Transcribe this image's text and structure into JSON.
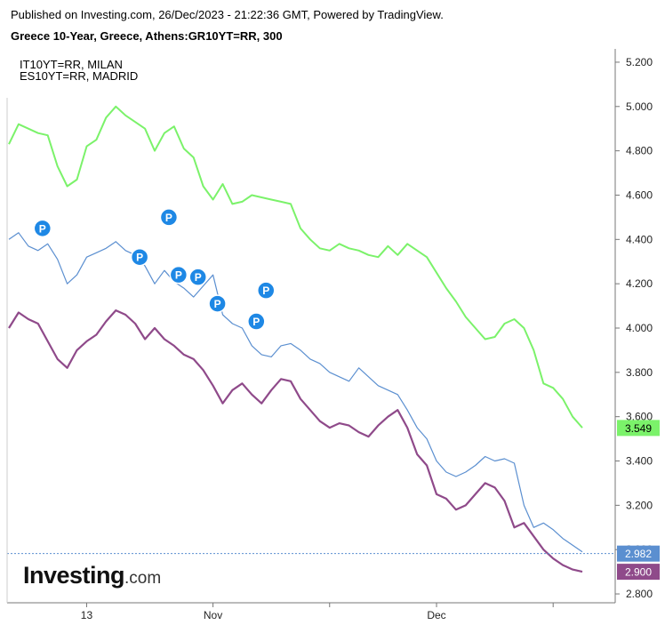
{
  "header": {
    "published": "Published on Investing.com, 26/Dec/2023 - 21:22:36 GMT, Powered by TradingView.",
    "symbol": "Greece 10-Year, Greece, Athens:GR10YT=RR, 300"
  },
  "legend": [
    "IT10YT=RR, MILAN",
    "ES10YT=RR, MADRID"
  ],
  "logo": {
    "main": "Investing",
    "suffix": ".com"
  },
  "colors": {
    "greece": "#8f4a8a",
    "italy": "#7bf26a",
    "spain": "#5b8fd0",
    "event_marker": "#1e88e5",
    "axis": "#777777"
  },
  "chart_data": {
    "type": "line",
    "x_ticks": [
      "13",
      "Nov",
      "Dec"
    ],
    "y_ticks": [
      "2.800",
      "3.000",
      "3.200",
      "3.400",
      "3.600",
      "3.800",
      "4.000",
      "4.200",
      "4.400",
      "4.600",
      "4.800",
      "5.000",
      "5.200"
    ],
    "ylim": [
      2.76,
      5.26
    ],
    "x_count": 60,
    "x_tick_index": [
      8,
      21,
      44
    ],
    "series": [
      {
        "name": "IT10YT=RR, MILAN",
        "color": "#7bf26a",
        "last": "3.549",
        "values": [
          4.83,
          4.92,
          4.9,
          4.88,
          4.87,
          4.73,
          4.64,
          4.67,
          4.82,
          4.85,
          4.95,
          5.0,
          4.96,
          4.93,
          4.9,
          4.8,
          4.88,
          4.91,
          4.81,
          4.77,
          4.64,
          4.58,
          4.65,
          4.56,
          4.57,
          4.6,
          4.59,
          4.58,
          4.57,
          4.56,
          4.45,
          4.4,
          4.36,
          4.35,
          4.38,
          4.36,
          4.35,
          4.33,
          4.32,
          4.37,
          4.33,
          4.38,
          4.35,
          4.32,
          4.25,
          4.18,
          4.12,
          4.05,
          4.0,
          3.95,
          3.96,
          4.02,
          4.04,
          4.0,
          3.9,
          3.75,
          3.73,
          3.68,
          3.6,
          3.55
        ]
      },
      {
        "name": "ES10YT=RR, MADRID",
        "color": "#5b8fd0",
        "last": "2.982",
        "values": [
          4.4,
          4.43,
          4.37,
          4.35,
          4.38,
          4.31,
          4.2,
          4.24,
          4.32,
          4.34,
          4.36,
          4.39,
          4.35,
          4.33,
          4.28,
          4.2,
          4.26,
          4.21,
          4.18,
          4.14,
          4.19,
          4.24,
          4.06,
          4.02,
          4.0,
          3.92,
          3.88,
          3.87,
          3.92,
          3.93,
          3.9,
          3.86,
          3.84,
          3.8,
          3.78,
          3.76,
          3.82,
          3.78,
          3.74,
          3.72,
          3.7,
          3.63,
          3.55,
          3.5,
          3.4,
          3.35,
          3.33,
          3.35,
          3.38,
          3.42,
          3.4,
          3.41,
          3.39,
          3.2,
          3.1,
          3.12,
          3.09,
          3.05,
          3.02,
          2.99
        ]
      },
      {
        "name": "Greece 10-Year",
        "color": "#8f4a8a",
        "last": "2.900",
        "values": [
          4.0,
          4.07,
          4.04,
          4.02,
          3.94,
          3.86,
          3.82,
          3.9,
          3.94,
          3.97,
          4.03,
          4.08,
          4.06,
          4.02,
          3.95,
          4.0,
          3.95,
          3.92,
          3.88,
          3.86,
          3.81,
          3.74,
          3.66,
          3.72,
          3.75,
          3.7,
          3.66,
          3.72,
          3.77,
          3.76,
          3.68,
          3.63,
          3.58,
          3.55,
          3.57,
          3.56,
          3.53,
          3.51,
          3.56,
          3.6,
          3.63,
          3.55,
          3.43,
          3.38,
          3.25,
          3.23,
          3.18,
          3.2,
          3.25,
          3.3,
          3.28,
          3.22,
          3.1,
          3.12,
          3.06,
          3.0,
          2.96,
          2.93,
          2.91,
          2.9
        ]
      }
    ],
    "event_markers": [
      {
        "label": "P",
        "index": 3,
        "value": 4.45
      },
      {
        "label": "P",
        "index": 16,
        "value": 4.5
      },
      {
        "label": "P",
        "index": 13,
        "value": 4.32
      },
      {
        "label": "P",
        "index": 17,
        "value": 4.24
      },
      {
        "label": "P",
        "index": 19,
        "value": 4.23
      },
      {
        "label": "P",
        "index": 21,
        "value": 4.11
      },
      {
        "label": "P",
        "index": 26,
        "value": 4.17
      },
      {
        "label": "P",
        "index": 25,
        "value": 4.03
      }
    ]
  }
}
